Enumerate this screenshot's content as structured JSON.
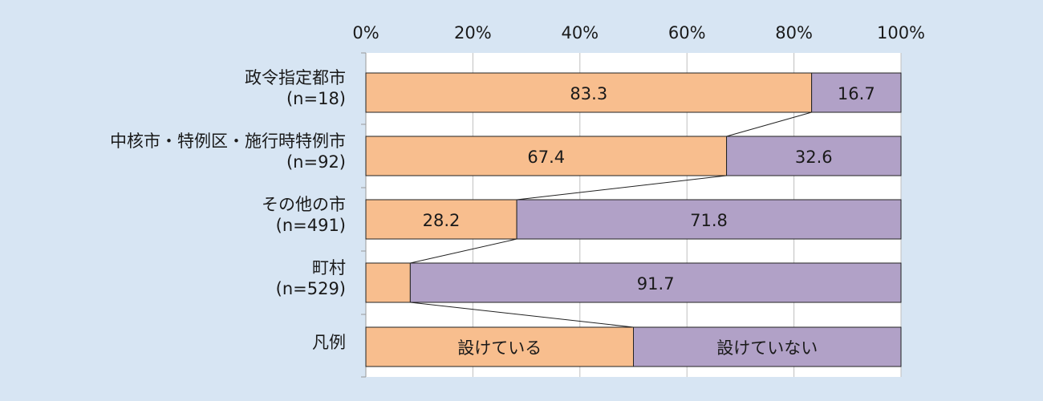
{
  "chart_data": {
    "type": "bar",
    "orientation": "horizontal",
    "stacked": "100%",
    "x_ticks": [
      "0%",
      "20%",
      "40%",
      "60%",
      "80%",
      "100%"
    ],
    "xlim": [
      0,
      100
    ],
    "categories": [
      {
        "name": "政令指定都市",
        "n": "(n=18)"
      },
      {
        "name": "中核市・特例区・施行時特例市",
        "n": "(n=92)"
      },
      {
        "name": "その他の市",
        "n": "(n=491)"
      },
      {
        "name": "町村",
        "n": "(n=529)"
      }
    ],
    "series": [
      {
        "name": "設けている",
        "color": "#f8be8e",
        "values": [
          83.3,
          67.4,
          28.2,
          8.3
        ],
        "labels": [
          "83.3",
          "67.4",
          "28.2",
          ""
        ]
      },
      {
        "name": "設けていない",
        "color": "#b1a1c7",
        "values": [
          16.7,
          32.6,
          71.8,
          91.7
        ],
        "labels": [
          "16.7",
          "32.6",
          "71.8",
          "91.7"
        ]
      }
    ],
    "legend": {
      "label": "凡例",
      "values": [
        50,
        50
      ],
      "texts": [
        "設けている",
        "設けていない"
      ]
    },
    "series_lines": true,
    "grid": true
  }
}
